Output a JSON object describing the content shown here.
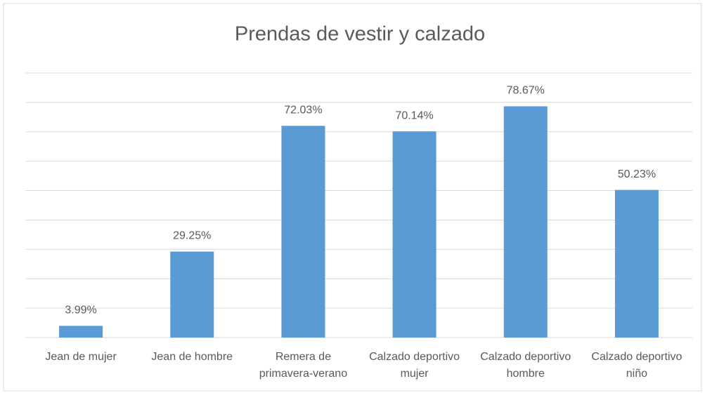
{
  "chart_data": {
    "type": "bar",
    "title": "Prendas de vestir y calzado",
    "categories": [
      "Jean de mujer",
      "Jean de hombre",
      "Remera de primavera-verano",
      "Calzado deportivo mujer",
      "Calzado deportivo hombre",
      "Calzado deportivo niño"
    ],
    "values": [
      3.99,
      29.25,
      72.03,
      70.14,
      78.67,
      50.23
    ],
    "value_labels": [
      "3.99%",
      "29.25%",
      "72.03%",
      "70.14%",
      "78.67%",
      "50.23%"
    ],
    "color": "#5b9bd5",
    "ylim": [
      0,
      90
    ],
    "yticks": [
      0,
      10,
      20,
      30,
      40,
      50,
      60,
      70,
      80,
      90
    ],
    "grid": true
  }
}
